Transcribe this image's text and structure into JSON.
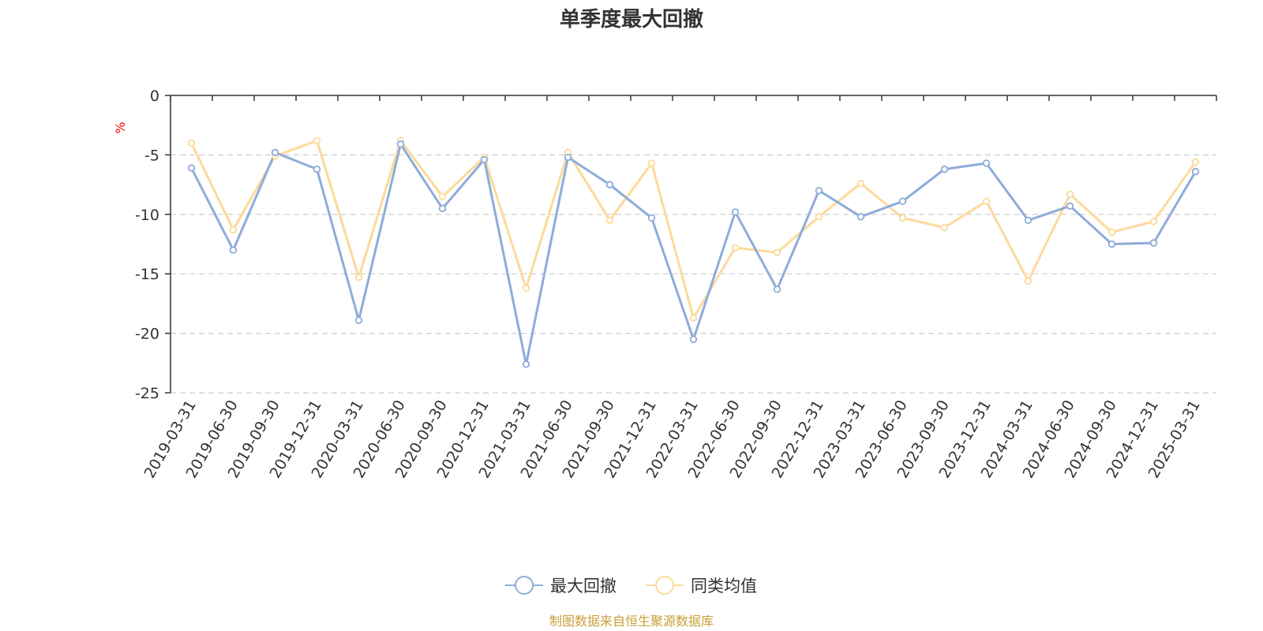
{
  "colors": {
    "series_1": "#8eacd9",
    "series_2": "#fdd99a",
    "source": "#c9a03a",
    "grid": "#cccccc",
    "unit": "#ff0000"
  },
  "chart_data": {
    "type": "line",
    "title": "单季度最大回撤",
    "ylabel": "%",
    "xlabel": "",
    "ylim": [
      -25,
      0
    ],
    "yticks": [
      0,
      -5,
      -10,
      -15,
      -20,
      -25
    ],
    "grid": true,
    "legend_position": "bottom-center",
    "categories": [
      "2019-03-31",
      "2019-06-30",
      "2019-09-30",
      "2019-12-31",
      "2020-03-31",
      "2020-06-30",
      "2020-09-30",
      "2020-12-31",
      "2021-03-31",
      "2021-06-30",
      "2021-09-30",
      "2021-12-31",
      "2022-03-31",
      "2022-06-30",
      "2022-09-30",
      "2022-12-31",
      "2023-03-31",
      "2023-06-30",
      "2023-09-30",
      "2023-12-31",
      "2024-03-31",
      "2024-06-30",
      "2024-09-30",
      "2024-12-31",
      "2025-03-31"
    ],
    "series": [
      {
        "name": "最大回撤",
        "values": [
          -6.1,
          -13.0,
          -4.8,
          -6.2,
          -18.9,
          -4.1,
          -9.5,
          -5.4,
          -22.6,
          -5.2,
          -7.5,
          -10.3,
          -20.5,
          -9.8,
          -16.3,
          -8.0,
          -10.2,
          -8.9,
          -6.2,
          -5.7,
          -10.5,
          -9.3,
          -12.5,
          -12.4,
          -6.4
        ]
      },
      {
        "name": "同类均值",
        "values": [
          -4.0,
          -11.3,
          -5.1,
          -3.8,
          -15.3,
          -3.8,
          -8.5,
          -5.2,
          -16.2,
          -4.8,
          -10.5,
          -5.7,
          -18.7,
          -12.8,
          -13.2,
          -10.2,
          -7.4,
          -10.3,
          -11.1,
          -8.9,
          -15.6,
          -8.3,
          -11.5,
          -10.6,
          -5.6
        ]
      }
    ]
  },
  "footer": {
    "source_text": "制图数据来自恒生聚源数据库"
  }
}
